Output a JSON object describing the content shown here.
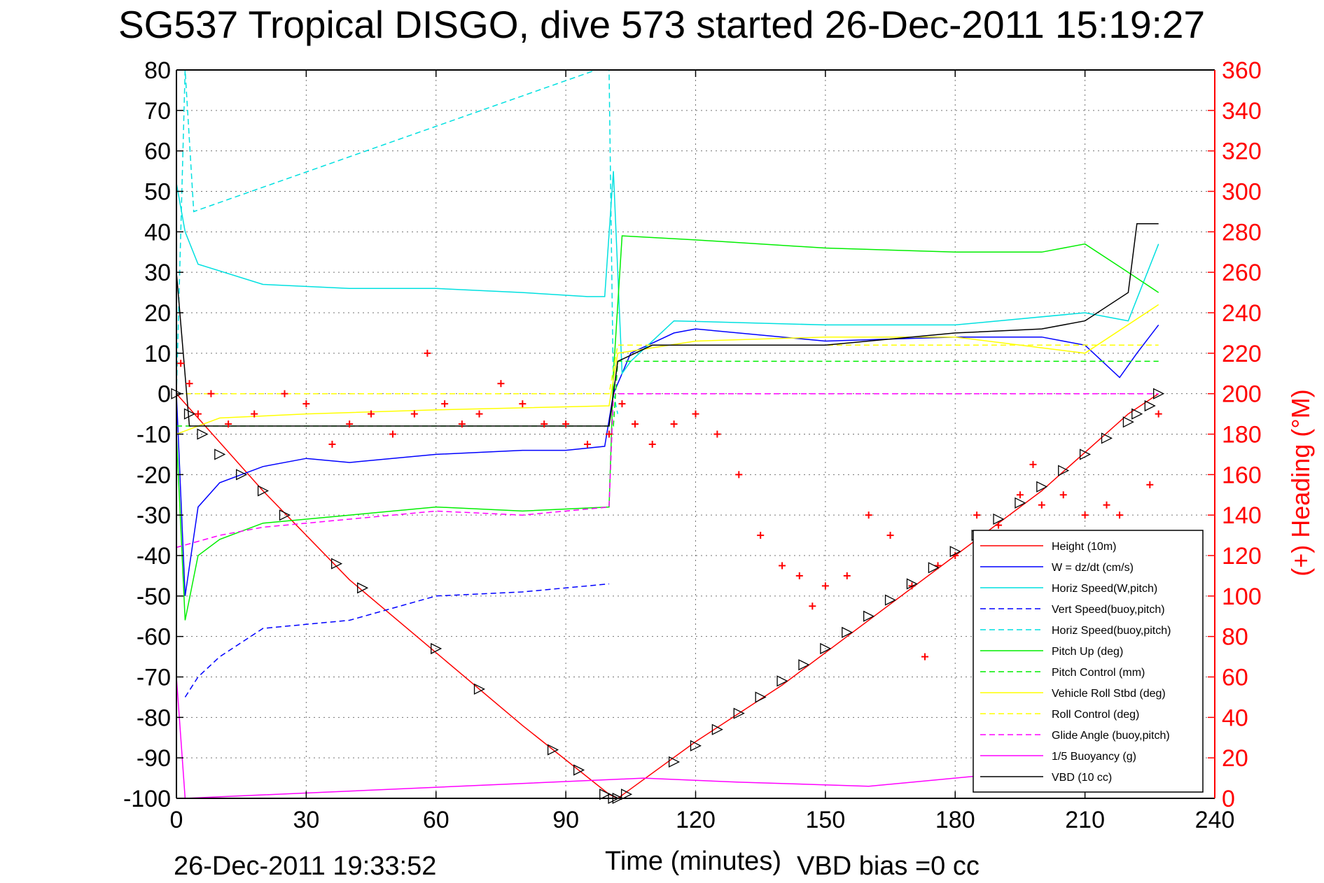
{
  "chart_data": {
    "type": "line",
    "title": "SG537 Tropical DISGO, dive 573 started 26-Dec-2011 15:19:27",
    "xlabel": "Time (minutes)",
    "ylabel": "",
    "ylabel_right": "(+) Heading (°M)",
    "xlim": [
      0,
      240
    ],
    "ylim": [
      -100,
      80
    ],
    "ylim_right": [
      0,
      360
    ],
    "x_ticks": [
      "0",
      "30",
      "60",
      "90",
      "120",
      "150",
      "180",
      "210",
      "240"
    ],
    "y_ticks": [
      "80",
      "70",
      "60",
      "50",
      "40",
      "30",
      "20",
      "10",
      "0",
      "-10",
      "-20",
      "-30",
      "-40",
      "-50",
      "-60",
      "-70",
      "-80",
      "-90",
      "-100"
    ],
    "y_ticks_right": [
      "360",
      "340",
      "320",
      "300",
      "280",
      "260",
      "240",
      "220",
      "200",
      "180",
      "160",
      "140",
      "120",
      "100",
      "80",
      "60",
      "40",
      "20",
      "0"
    ],
    "grid": true,
    "legend_position": "bottom-right",
    "footer_left": "26-Dec-2011 19:33:52",
    "footer_right": "VBD bias =0 cc",
    "series": [
      {
        "name": "Height (10m)",
        "color": "#ff0000",
        "style": "solid",
        "x": [
          0,
          20,
          40,
          60,
          80,
          100,
          102,
          120,
          140,
          160,
          180,
          200,
          220,
          227
        ],
        "y": [
          0,
          -24,
          -46,
          -64,
          -82,
          -99,
          -100,
          -86,
          -72,
          -56,
          -40,
          -24,
          -5,
          0
        ]
      },
      {
        "name": "W = dz/dt (cm/s)",
        "color": "#0000ff",
        "style": "solid",
        "x": [
          0,
          2,
          5,
          10,
          20,
          30,
          40,
          60,
          80,
          90,
          99,
          101,
          103,
          105,
          115,
          120,
          150,
          180,
          200,
          210,
          218,
          222,
          227
        ],
        "y": [
          0,
          -50,
          -28,
          -22,
          -18,
          -16,
          -17,
          -15,
          -14,
          -14,
          -13,
          0,
          5,
          10,
          15,
          16,
          13,
          14,
          14,
          12,
          4,
          10,
          17
        ]
      },
      {
        "name": "Horiz Speed(W,pitch)",
        "color": "#00e0e0",
        "style": "solid",
        "x": [
          0,
          2,
          5,
          20,
          40,
          60,
          80,
          95,
          99,
          101,
          103,
          105,
          115,
          150,
          180,
          210,
          220,
          227
        ],
        "y": [
          52,
          40,
          32,
          27,
          26,
          26,
          25,
          24,
          24,
          55,
          5,
          8,
          18,
          17,
          17,
          20,
          18,
          37
        ]
      },
      {
        "name": "Vert Speed(buoy,pitch)",
        "color": "#0000ff",
        "style": "dashed",
        "x": [
          2,
          5,
          10,
          20,
          30,
          40,
          60,
          80,
          100
        ],
        "y": [
          -75,
          -70,
          -65,
          -58,
          -57,
          -56,
          -50,
          -49,
          -47
        ]
      },
      {
        "name": "Horiz Speed(buoy,pitch)",
        "color": "#00e0e0",
        "style": "dashed",
        "x": [
          0,
          2,
          4,
          97,
          100,
          101,
          102
        ],
        "y": [
          0,
          80,
          45,
          80,
          80,
          0,
          -5
        ]
      },
      {
        "name": "Pitch Up (deg)",
        "color": "#00ee00",
        "style": "solid",
        "x": [
          0,
          2,
          5,
          10,
          20,
          40,
          60,
          80,
          100,
          101,
          103,
          120,
          150,
          180,
          200,
          210,
          220,
          227
        ],
        "y": [
          -10,
          -56,
          -40,
          -36,
          -32,
          -30,
          -28,
          -29,
          -28,
          5,
          39,
          38,
          36,
          35,
          35,
          37,
          30,
          25
        ]
      },
      {
        "name": "Pitch Control (mm)",
        "color": "#00ee00",
        "style": "dashed",
        "x": [
          0,
          101,
          102,
          227
        ],
        "y": [
          -8,
          -8,
          8,
          8
        ]
      },
      {
        "name": "Vehicle Roll Stbd (deg)",
        "color": "#ffff00",
        "style": "solid",
        "x": [
          0,
          10,
          30,
          60,
          100,
          102,
          120,
          150,
          180,
          210,
          227
        ],
        "y": [
          -10,
          -6,
          -5,
          -4,
          -3,
          10,
          13,
          14,
          14,
          10,
          22
        ]
      },
      {
        "name": "Roll Control (deg)",
        "color": "#ffff00",
        "style": "dashed",
        "x": [
          0,
          100,
          102,
          227
        ],
        "y": [
          0,
          0,
          12,
          12
        ]
      },
      {
        "name": "Glide Angle (buoy,pitch)",
        "color": "#ff00ff",
        "style": "dashed",
        "x": [
          0,
          10,
          20,
          40,
          60,
          80,
          100,
          101,
          227
        ],
        "y": [
          -38,
          -35,
          -33,
          -31,
          -29,
          -30,
          -28,
          0,
          0
        ]
      },
      {
        "name": "1/5 Buoyancy (g)",
        "color": "#ff00ff",
        "style": "solid",
        "x": [
          0,
          2,
          108,
          130,
          160,
          190,
          205,
          227
        ],
        "y": [
          -70,
          -100,
          -95,
          -96,
          -97,
          -94,
          -93,
          -92
        ]
      },
      {
        "name": "VBD (10 cc)",
        "color": "#000000",
        "style": "solid",
        "x": [
          0,
          3,
          100,
          102,
          110,
          150,
          180,
          200,
          210,
          220,
          222,
          227
        ],
        "y": [
          30,
          -8,
          -8,
          8,
          12,
          12,
          15,
          16,
          18,
          25,
          42,
          42
        ]
      }
    ],
    "heading": {
      "name": "(+) Heading",
      "color": "#ff0000",
      "marker": "+",
      "axis": "right",
      "x": [
        1,
        3,
        5,
        8,
        12,
        18,
        25,
        30,
        36,
        40,
        45,
        50,
        55,
        58,
        62,
        66,
        70,
        75,
        80,
        85,
        90,
        95,
        100,
        103,
        106,
        110,
        115,
        120,
        125,
        130,
        135,
        140,
        144,
        147,
        150,
        155,
        160,
        165,
        170,
        173,
        176,
        180,
        185,
        190,
        195,
        198,
        200,
        205,
        210,
        215,
        218,
        222,
        225,
        227
      ],
      "y": [
        215,
        205,
        190,
        200,
        185,
        190,
        200,
        195,
        175,
        185,
        190,
        180,
        190,
        220,
        195,
        185,
        190,
        205,
        195,
        185,
        185,
        175,
        180,
        195,
        185,
        175,
        185,
        190,
        180,
        160,
        130,
        115,
        110,
        95,
        105,
        110,
        140,
        130,
        105,
        70,
        115,
        120,
        140,
        135,
        150,
        165,
        145,
        150,
        140,
        145,
        140,
        120,
        155,
        190
      ]
    },
    "markers": {
      "name": "turn markers",
      "x": [
        0,
        3,
        6,
        10,
        15,
        20,
        25,
        37,
        43,
        60,
        70,
        87,
        93,
        99,
        101,
        102,
        104,
        115,
        120,
        125,
        130,
        135,
        140,
        145,
        150,
        155,
        160,
        165,
        170,
        175,
        180,
        185,
        190,
        195,
        200,
        205,
        210,
        215,
        220,
        222,
        225,
        227
      ],
      "y": [
        0,
        -5,
        -10,
        -15,
        -20,
        -24,
        -30,
        -42,
        -48,
        -63,
        -73,
        -88,
        -93,
        -99,
        -100,
        -100,
        -99,
        -91,
        -87,
        -83,
        -79,
        -75,
        -71,
        -67,
        -63,
        -59,
        -55,
        -51,
        -47,
        -43,
        -39,
        -35,
        -31,
        -27,
        -23,
        -19,
        -15,
        -11,
        -7,
        -5,
        -3,
        0
      ]
    }
  }
}
